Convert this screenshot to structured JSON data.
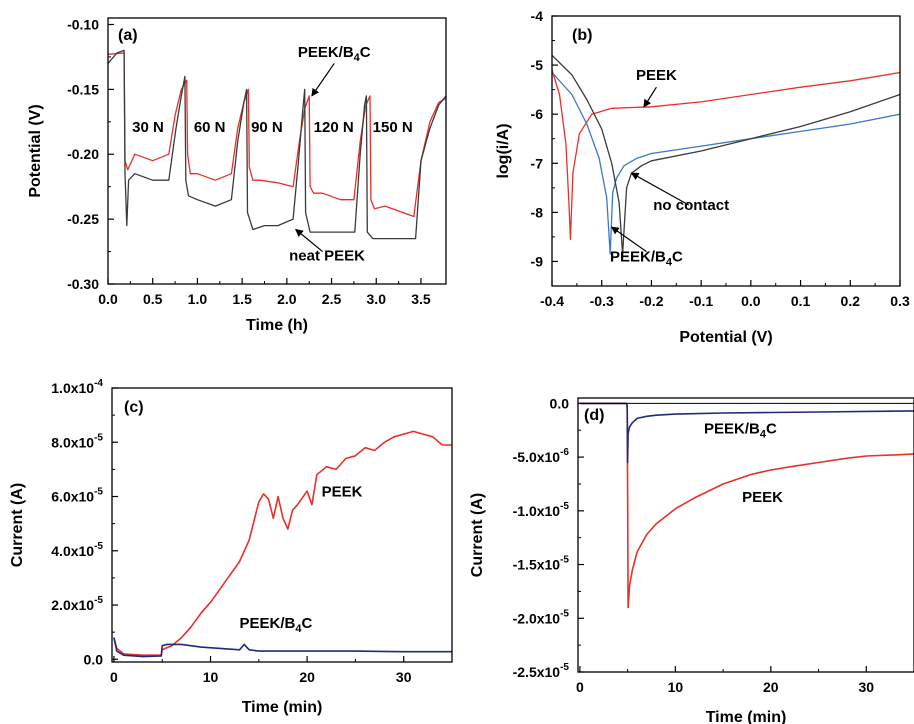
{
  "colors": {
    "red": "#e8302a",
    "black": "#3a3a3a",
    "blue": "#3c78c8",
    "navy": "#1f2a7a",
    "pgray": "#7a7a7a"
  },
  "chart_data": [
    {
      "type": "line",
      "panel_label": "(a)",
      "xlabel": "Time (h)",
      "ylabel": "Potential (V)",
      "xlim": [
        0,
        3.78
      ],
      "ylim": [
        -0.3,
        -0.095
      ],
      "x_ticks": [
        0.0,
        0.5,
        1.0,
        1.5,
        2.0,
        2.5,
        3.0,
        3.5
      ],
      "x_tick_labels": [
        "0.0",
        "0.5",
        "1.0",
        "1.5",
        "2.0",
        "2.5",
        "3.0",
        "3.5"
      ],
      "y_ticks": [
        -0.3,
        -0.25,
        -0.2,
        -0.15,
        -0.1
      ],
      "y_tick_labels": [
        "-0.30",
        "-0.25",
        "-0.20",
        "-0.15",
        "-0.10"
      ],
      "series": [
        {
          "name": "PEEK/B4C",
          "color": "red",
          "x": [
            0,
            0.18,
            0.19,
            0.22,
            0.3,
            0.5,
            0.68,
            0.75,
            0.82,
            0.88,
            0.89,
            0.92,
            1.0,
            1.2,
            1.38,
            1.45,
            1.52,
            1.57,
            1.58,
            1.62,
            1.7,
            1.9,
            2.07,
            2.14,
            2.2,
            2.25,
            2.26,
            2.3,
            2.4,
            2.6,
            2.75,
            2.82,
            2.88,
            2.93,
            2.94,
            2.98,
            3.1,
            3.3,
            3.42,
            3.5,
            3.6,
            3.7,
            3.78
          ],
          "y": [
            -0.123,
            -0.122,
            -0.205,
            -0.212,
            -0.2,
            -0.205,
            -0.2,
            -0.17,
            -0.15,
            -0.143,
            -0.2,
            -0.215,
            -0.215,
            -0.22,
            -0.215,
            -0.18,
            -0.16,
            -0.15,
            -0.21,
            -0.22,
            -0.22,
            -0.222,
            -0.225,
            -0.19,
            -0.165,
            -0.155,
            -0.225,
            -0.23,
            -0.23,
            -0.235,
            -0.235,
            -0.19,
            -0.163,
            -0.155,
            -0.235,
            -0.242,
            -0.24,
            -0.245,
            -0.248,
            -0.205,
            -0.175,
            -0.16,
            -0.157
          ]
        },
        {
          "name": "neat PEEK",
          "color": "black",
          "x": [
            0,
            0.1,
            0.18,
            0.19,
            0.21,
            0.23,
            0.3,
            0.5,
            0.68,
            0.76,
            0.82,
            0.86,
            0.87,
            0.9,
            1.0,
            1.2,
            1.38,
            1.45,
            1.52,
            1.55,
            1.56,
            1.62,
            1.75,
            1.9,
            2.07,
            2.13,
            2.18,
            2.2,
            2.21,
            2.26,
            2.4,
            2.6,
            2.76,
            2.82,
            2.87,
            2.89,
            2.9,
            2.96,
            3.1,
            3.3,
            3.44,
            3.5,
            3.6,
            3.7,
            3.78
          ],
          "y": [
            -0.13,
            -0.122,
            -0.12,
            -0.215,
            -0.255,
            -0.22,
            -0.215,
            -0.22,
            -0.22,
            -0.18,
            -0.155,
            -0.14,
            -0.22,
            -0.232,
            -0.235,
            -0.24,
            -0.235,
            -0.19,
            -0.16,
            -0.15,
            -0.245,
            -0.258,
            -0.255,
            -0.255,
            -0.25,
            -0.205,
            -0.165,
            -0.15,
            -0.245,
            -0.26,
            -0.26,
            -0.26,
            -0.26,
            -0.2,
            -0.162,
            -0.155,
            -0.26,
            -0.265,
            -0.265,
            -0.265,
            -0.265,
            -0.205,
            -0.18,
            -0.162,
            -0.155
          ]
        }
      ],
      "annotations": [
        {
          "text": "30 N",
          "x": 0.27,
          "y": -0.183
        },
        {
          "text": "60 N",
          "x": 0.96,
          "y": -0.183
        },
        {
          "text": "90 N",
          "x": 1.6,
          "y": -0.183
        },
        {
          "text": "120 N",
          "x": 2.3,
          "y": -0.183
        },
        {
          "text": "150 N",
          "x": 2.96,
          "y": -0.183
        }
      ],
      "callouts": [
        {
          "text": "PEEK/B4C",
          "text_x": 2.53,
          "text_y": -0.125,
          "arrow_from": [
            2.53,
            -0.13
          ],
          "arrow_to": [
            2.28,
            -0.155
          ]
        },
        {
          "text": "neat PEEK",
          "text_x": 2.45,
          "text_y": -0.282,
          "arrow_from": [
            2.4,
            -0.275
          ],
          "arrow_to": [
            2.1,
            -0.258
          ]
        }
      ]
    },
    {
      "type": "line",
      "panel_label": "(b)",
      "xlabel": "Potential (V)",
      "ylabel": "log(i/A)",
      "xlim": [
        -0.4,
        0.3
      ],
      "ylim": [
        -9.5,
        -4
      ],
      "x_ticks": [
        -0.4,
        -0.3,
        -0.2,
        -0.1,
        0.0,
        0.1,
        0.2,
        0.3
      ],
      "x_tick_labels": [
        "-0.4",
        "-0.3",
        "-0.2",
        "-0.1",
        "0.0",
        "0.1",
        "0.2",
        "0.3"
      ],
      "y_ticks": [
        -9,
        -8,
        -7,
        -6,
        -5,
        -4
      ],
      "y_tick_labels": [
        "-9",
        "-8",
        "-7",
        "-6",
        "-5",
        "-4"
      ],
      "series": [
        {
          "name": "PEEK",
          "color": "red",
          "x": [
            -0.4,
            -0.385,
            -0.372,
            -0.366,
            -0.363,
            -0.358,
            -0.345,
            -0.32,
            -0.28,
            -0.2,
            -0.1,
            0.0,
            0.1,
            0.2,
            0.3
          ],
          "y": [
            -5.1,
            -5.6,
            -6.6,
            -7.8,
            -8.55,
            -7.2,
            -6.4,
            -6.0,
            -5.88,
            -5.85,
            -5.75,
            -5.6,
            -5.45,
            -5.32,
            -5.15
          ]
        },
        {
          "name": "PEEK/B4C",
          "color": "blue",
          "x": [
            -0.4,
            -0.36,
            -0.33,
            -0.305,
            -0.29,
            -0.283,
            -0.278,
            -0.27,
            -0.255,
            -0.23,
            -0.2,
            -0.1,
            0.0,
            0.1,
            0.2,
            0.3
          ],
          "y": [
            -5.15,
            -5.6,
            -6.2,
            -6.9,
            -7.7,
            -8.85,
            -7.6,
            -7.3,
            -7.05,
            -6.9,
            -6.8,
            -6.65,
            -6.5,
            -6.35,
            -6.2,
            -6.0
          ]
        },
        {
          "name": "no contact",
          "color": "black",
          "x": [
            -0.4,
            -0.36,
            -0.33,
            -0.3,
            -0.28,
            -0.265,
            -0.258,
            -0.25,
            -0.24,
            -0.22,
            -0.2,
            -0.1,
            0.0,
            0.1,
            0.2,
            0.3
          ],
          "y": [
            -4.8,
            -5.2,
            -5.7,
            -6.3,
            -7.0,
            -7.8,
            -8.85,
            -7.5,
            -7.2,
            -7.05,
            -6.95,
            -6.75,
            -6.5,
            -6.25,
            -5.95,
            -5.6
          ]
        }
      ],
      "callouts": [
        {
          "text": "PEEK",
          "text_x": -0.19,
          "text_y": -5.3,
          "arrow_from": [
            -0.19,
            -5.45
          ],
          "arrow_to": [
            -0.215,
            -5.85
          ]
        },
        {
          "text": "no contact",
          "text_x": -0.12,
          "text_y": -7.95,
          "arrow_from": [
            -0.125,
            -7.85
          ],
          "arrow_to": [
            -0.24,
            -7.2
          ]
        },
        {
          "text": "PEEK/B4C",
          "text_x": -0.21,
          "text_y": -9.0,
          "arrow_from": [
            -0.21,
            -8.8
          ],
          "arrow_to": [
            -0.28,
            -8.3
          ]
        }
      ]
    },
    {
      "type": "line",
      "panel_label": "(c)",
      "xlabel": "Time (min)",
      "ylabel": "Current (A)",
      "xlim": [
        -0.2,
        35
      ],
      "ylim": [
        -1e-06,
        0.0001
      ],
      "x_ticks": [
        0,
        10,
        20,
        30
      ],
      "x_tick_labels": [
        "0",
        "10",
        "20",
        "30"
      ],
      "y_ticks": [
        0,
        2e-05,
        4e-05,
        6e-05,
        8e-05,
        0.0001
      ],
      "y_tick_labels": [
        "0.0",
        "2.0x10",
        "4.0x10",
        "6.0x10",
        "8.0x10",
        "1.0x10"
      ],
      "y_tick_exponents": [
        "",
        "-5",
        "-5",
        "-5",
        "-5",
        "-4"
      ],
      "series": [
        {
          "name": "PEEK",
          "color": "red",
          "x": [
            0,
            0.3,
            1,
            3,
            4.9,
            5,
            5.3,
            6,
            7,
            8,
            9,
            10,
            11,
            12,
            13,
            14,
            15,
            15.5,
            16,
            16.5,
            17,
            17.5,
            18,
            18.5,
            19,
            20,
            20.5,
            21,
            22,
            23,
            24,
            25,
            26,
            27,
            28,
            29,
            30,
            31,
            32,
            33,
            34,
            35
          ],
          "y": [
            8e-06,
            4e-06,
            2e-06,
            1.5e-06,
            1.5e-06,
            3.5e-06,
            4e-06,
            5e-06,
            8e-06,
            1.2e-05,
            1.7e-05,
            2.1e-05,
            2.6e-05,
            3.1e-05,
            3.6e-05,
            4.4e-05,
            5.8e-05,
            6.1e-05,
            5.9e-05,
            5.2e-05,
            6e-05,
            5.2e-05,
            4.8e-05,
            5.5e-05,
            5.7e-05,
            6.2e-05,
            5.7e-05,
            6.8e-05,
            7.1e-05,
            7e-05,
            7.4e-05,
            7.5e-05,
            7.8e-05,
            7.7e-05,
            8e-05,
            8.2e-05,
            8.3e-05,
            8.4e-05,
            8.3e-05,
            8.2e-05,
            7.9e-05,
            7.9e-05
          ]
        },
        {
          "name": "PEEK/B4C",
          "color": "navy",
          "x": [
            0,
            0.3,
            1,
            3,
            4.9,
            5,
            5.5,
            7,
            9,
            11,
            13,
            13.5,
            14,
            15,
            20,
            25,
            30,
            35
          ],
          "y": [
            8e-06,
            3e-06,
            1.5e-06,
            1e-06,
            1.2e-06,
            5e-06,
            5.5e-06,
            5.5e-06,
            4.5e-06,
            4e-06,
            3.5e-06,
            5.5e-06,
            3.5e-06,
            3e-06,
            3e-06,
            3e-06,
            2.8e-06,
            2.8e-06
          ]
        }
      ],
      "annotations": [
        {
          "text": "PEEK",
          "x": 21.5,
          "y": 6e-05
        },
        {
          "text": "PEEK/B4C",
          "x": 13,
          "y": 1.15e-05
        }
      ]
    },
    {
      "type": "line",
      "panel_label": "(d)",
      "xlabel": "Time (min)",
      "ylabel": "Current (A)",
      "xlim": [
        -0.2,
        35
      ],
      "ylim": [
        -2.5e-05,
        5e-07
      ],
      "x_ticks": [
        0,
        10,
        20,
        30
      ],
      "x_tick_labels": [
        "0",
        "10",
        "20",
        "30"
      ],
      "y_ticks": [
        0,
        -5e-06,
        -1e-05,
        -1.5e-05,
        -2e-05,
        -2.5e-05
      ],
      "y_tick_labels": [
        "0.0",
        "-5.0x10",
        "-1.0x10",
        "-1.5x10",
        "-2.0x10",
        "-2.5x10"
      ],
      "y_tick_exponents": [
        "",
        "-6",
        "-5",
        "-5",
        "-5",
        "-5"
      ],
      "series": [
        {
          "name": "PEEK",
          "color": "red",
          "x": [
            0,
            4.9,
            4.95,
            5.0,
            5.05,
            5.2,
            5.5,
            6,
            7,
            8,
            10,
            12,
            15,
            18,
            20,
            22,
            25,
            28,
            30,
            33,
            35
          ],
          "y": [
            0,
            0,
            -5e-07,
            -8e-06,
            -1.9e-05,
            -1.7e-05,
            -1.55e-05,
            -1.38e-05,
            -1.22e-05,
            -1.12e-05,
            -9.8e-06,
            -8.8e-06,
            -7.5e-06,
            -6.6e-06,
            -6.2e-06,
            -5.9e-06,
            -5.5e-06,
            -5.1e-06,
            -4.9e-06,
            -4.8e-06,
            -4.7e-06
          ]
        },
        {
          "name": "PEEK/B4C",
          "color": "navy",
          "x": [
            0,
            4.9,
            4.95,
            5.0,
            5.05,
            5.2,
            5.5,
            6,
            7,
            8,
            10,
            15,
            20,
            25,
            30,
            35
          ],
          "y": [
            0,
            0,
            -3e-07,
            -5.5e-06,
            -2.8e-06,
            -2.2e-06,
            -1.8e-06,
            -1.4e-06,
            -1.2e-06,
            -1.1e-06,
            -1e-06,
            -9e-07,
            -8.5e-07,
            -8e-07,
            -7.5e-07,
            -7e-07
          ]
        }
      ],
      "annotations": [
        {
          "text": "PEEK/B4C",
          "x": 13,
          "y": -2.8e-06
        },
        {
          "text": "PEEK",
          "x": 17,
          "y": -9.2e-06
        }
      ]
    }
  ]
}
